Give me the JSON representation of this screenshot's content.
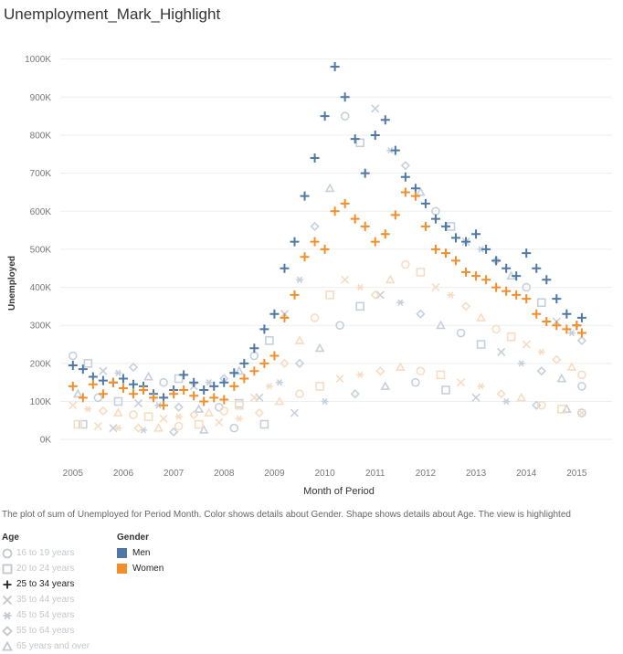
{
  "title": "Unemployment_Mark_Highlight",
  "caption": "The plot of sum of Unemployed for Period Month.  Color shows details about Gender.  Shape shows details about Age. The view is highlighted",
  "colors": {
    "men": "#4e79a7",
    "women": "#f28e2b",
    "men_faded": "#c6d0dc",
    "women_faded": "#f8dcc2"
  },
  "chart_data": {
    "type": "scatter",
    "xlabel": "Month of Period",
    "ylabel": "Unemployed",
    "xlim": [
      2004.75,
      2015.7
    ],
    "ylim": [
      -50,
      1040
    ],
    "x_ticks": [
      "2005",
      "2006",
      "2007",
      "2008",
      "2009",
      "2010",
      "2011",
      "2012",
      "2013",
      "2014",
      "2015"
    ],
    "y_ticks": [
      "0K",
      "100K",
      "200K",
      "300K",
      "400K",
      "500K",
      "600K",
      "700K",
      "800K",
      "900K",
      "1000K"
    ],
    "highlighted_age": "25 to 34 years",
    "highlighted_series": [
      {
        "name": "Men",
        "x": [
          2005.0,
          2005.2,
          2005.4,
          2005.6,
          2005.8,
          2006.0,
          2006.2,
          2006.4,
          2006.6,
          2006.8,
          2007.0,
          2007.2,
          2007.4,
          2007.6,
          2007.8,
          2008.0,
          2008.2,
          2008.4,
          2008.6,
          2008.8,
          2009.0,
          2009.2,
          2009.4,
          2009.6,
          2009.8,
          2010.0,
          2010.2,
          2010.4,
          2010.6,
          2010.8,
          2011.0,
          2011.2,
          2011.4,
          2011.6,
          2011.8,
          2012.0,
          2012.2,
          2012.4,
          2012.6,
          2012.8,
          2013.0,
          2013.2,
          2013.4,
          2013.6,
          2013.8,
          2014.0,
          2014.2,
          2014.4,
          2014.6,
          2014.8,
          2015.0,
          2015.1
        ],
        "y": [
          195,
          185,
          165,
          155,
          150,
          160,
          145,
          140,
          120,
          110,
          130,
          170,
          150,
          130,
          140,
          150,
          175,
          200,
          240,
          290,
          330,
          450,
          520,
          640,
          740,
          850,
          980,
          900,
          790,
          700,
          800,
          840,
          760,
          690,
          660,
          620,
          580,
          560,
          530,
          520,
          540,
          500,
          470,
          450,
          430,
          490,
          450,
          420,
          370,
          330,
          300,
          320
        ]
      },
      {
        "name": "Women",
        "x": [
          2005.0,
          2005.2,
          2005.4,
          2005.6,
          2005.8,
          2006.0,
          2006.2,
          2006.4,
          2006.6,
          2006.8,
          2007.0,
          2007.2,
          2007.4,
          2007.6,
          2007.8,
          2008.0,
          2008.2,
          2008.4,
          2008.6,
          2008.8,
          2009.0,
          2009.2,
          2009.4,
          2009.6,
          2009.8,
          2010.0,
          2010.2,
          2010.4,
          2010.6,
          2010.8,
          2011.0,
          2011.2,
          2011.4,
          2011.6,
          2011.8,
          2012.0,
          2012.2,
          2012.4,
          2012.6,
          2012.8,
          2013.0,
          2013.2,
          2013.4,
          2013.6,
          2013.8,
          2014.0,
          2014.2,
          2014.4,
          2014.6,
          2014.8,
          2015.0,
          2015.1
        ],
        "y": [
          140,
          110,
          145,
          120,
          150,
          135,
          120,
          130,
          110,
          90,
          120,
          130,
          115,
          100,
          110,
          105,
          140,
          160,
          180,
          200,
          220,
          320,
          380,
          480,
          520,
          500,
          600,
          620,
          580,
          560,
          520,
          540,
          590,
          650,
          640,
          560,
          500,
          490,
          470,
          440,
          430,
          420,
          400,
          390,
          380,
          370,
          330,
          310,
          300,
          290,
          300,
          280
        ]
      }
    ],
    "background_series": [
      {
        "name": "Men",
        "x": [
          2005.0,
          2005.3,
          2005.6,
          2005.9,
          2006.2,
          2006.5,
          2006.8,
          2007.1,
          2007.4,
          2007.7,
          2008.0,
          2008.3,
          2008.6,
          2008.9,
          2009.2,
          2009.5,
          2009.8,
          2010.1,
          2010.4,
          2010.7,
          2011.0,
          2011.3,
          2011.6,
          2011.9,
          2012.2,
          2012.5,
          2012.8,
          2013.1,
          2013.4,
          2013.7,
          2014.0,
          2014.3,
          2014.6,
          2014.9,
          2015.1,
          2005.1,
          2005.5,
          2005.9,
          2006.3,
          2006.7,
          2007.1,
          2007.5,
          2007.9,
          2008.3,
          2008.7,
          2009.1,
          2009.5,
          2009.9,
          2010.3,
          2010.7,
          2011.1,
          2011.5,
          2011.9,
          2012.3,
          2012.7,
          2013.1,
          2013.5,
          2013.9,
          2014.3,
          2014.7,
          2015.1,
          2005.2,
          2005.8,
          2006.4,
          2007.0,
          2007.6,
          2008.2,
          2008.8,
          2009.4,
          2010.0,
          2010.6,
          2011.2,
          2011.8,
          2012.4,
          2013.0,
          2013.6,
          2014.2,
          2014.8,
          2015.1
        ],
        "y": [
          220,
          200,
          180,
          175,
          190,
          165,
          150,
          160,
          140,
          150,
          160,
          180,
          220,
          260,
          330,
          420,
          560,
          660,
          850,
          780,
          870,
          760,
          720,
          650,
          600,
          560,
          520,
          500,
          470,
          430,
          400,
          360,
          310,
          280,
          260,
          120,
          110,
          100,
          95,
          90,
          85,
          80,
          85,
          95,
          110,
          150,
          200,
          240,
          300,
          350,
          380,
          360,
          330,
          300,
          280,
          250,
          230,
          200,
          180,
          160,
          140,
          40,
          30,
          25,
          20,
          25,
          30,
          40,
          70,
          100,
          120,
          140,
          150,
          130,
          110,
          100,
          90,
          80,
          70
        ]
      },
      {
        "name": "Women",
        "x": [
          2005.0,
          2005.3,
          2005.6,
          2005.9,
          2006.2,
          2006.5,
          2006.8,
          2007.1,
          2007.4,
          2007.7,
          2008.0,
          2008.3,
          2008.6,
          2008.9,
          2009.2,
          2009.5,
          2009.8,
          2010.1,
          2010.4,
          2010.7,
          2011.0,
          2011.3,
          2011.6,
          2011.9,
          2012.2,
          2012.5,
          2012.8,
          2013.1,
          2013.4,
          2013.7,
          2014.0,
          2014.3,
          2014.6,
          2014.9,
          2015.1,
          2005.1,
          2005.5,
          2005.9,
          2006.3,
          2006.7,
          2007.1,
          2007.5,
          2007.9,
          2008.3,
          2008.7,
          2009.1,
          2009.5,
          2009.9,
          2010.3,
          2010.7,
          2011.1,
          2011.5,
          2011.9,
          2012.3,
          2012.7,
          2013.1,
          2013.5,
          2013.9,
          2014.3,
          2014.7,
          2015.1
        ],
        "y": [
          90,
          80,
          75,
          70,
          65,
          60,
          55,
          60,
          65,
          70,
          75,
          90,
          110,
          140,
          200,
          260,
          320,
          380,
          420,
          400,
          380,
          420,
          460,
          440,
          400,
          380,
          350,
          320,
          290,
          270,
          250,
          230,
          210,
          190,
          170,
          40,
          35,
          30,
          30,
          30,
          35,
          40,
          45,
          55,
          70,
          100,
          120,
          140,
          160,
          170,
          180,
          190,
          180,
          170,
          150,
          140,
          120,
          110,
          90,
          80,
          70
        ]
      }
    ]
  },
  "legend": {
    "age_title": "Age",
    "gender_title": "Gender",
    "ages": [
      {
        "label": "16 to 19 years",
        "shape": "circle-icon",
        "active": false
      },
      {
        "label": "20 to 24 years",
        "shape": "square-icon",
        "active": false
      },
      {
        "label": "25 to 34 years",
        "shape": "plus-icon",
        "active": true
      },
      {
        "label": "35 to 44 years",
        "shape": "cross-icon",
        "active": false
      },
      {
        "label": "45 to 54 years",
        "shape": "asterisk-icon",
        "active": false
      },
      {
        "label": "55 to 64 years",
        "shape": "diamond-icon",
        "active": false
      },
      {
        "label": "65 years and over",
        "shape": "triangle-icon",
        "active": false
      }
    ],
    "genders": [
      {
        "label": "Men",
        "color": "#4e79a7"
      },
      {
        "label": "Women",
        "color": "#f28e2b"
      }
    ]
  }
}
